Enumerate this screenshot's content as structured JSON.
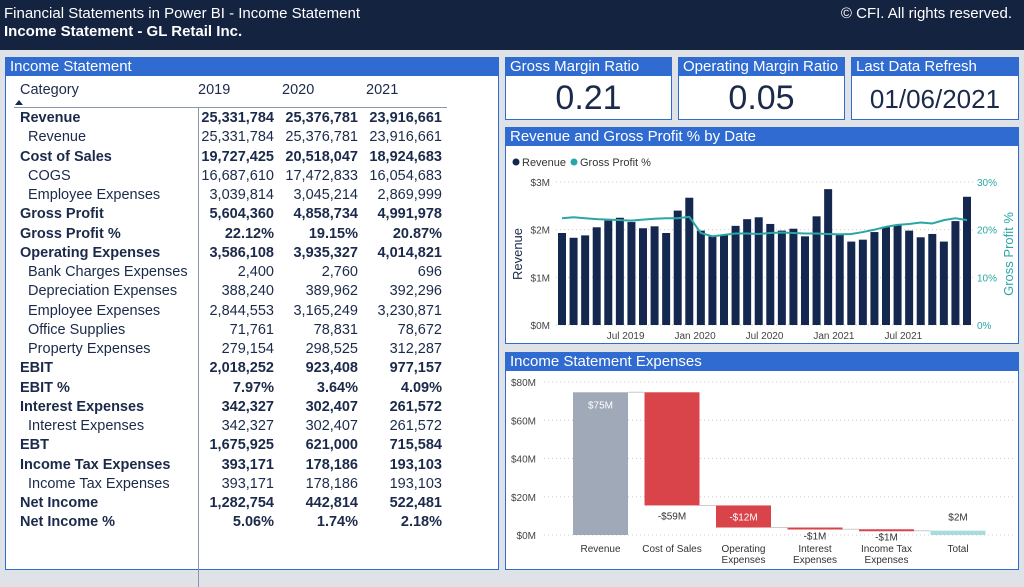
{
  "header": {
    "title": "Financial Statements in Power BI - Income Statement",
    "subtitle": "Income Statement - GL Retail Inc.",
    "copyright": "© CFI. All rights reserved."
  },
  "table": {
    "title": "Income Statement",
    "columns": [
      "Category",
      "2019",
      "2020",
      "2021"
    ],
    "sort_icon": "sort-ascending-triangle",
    "rows": [
      {
        "label": "Revenue",
        "bold": true,
        "values": [
          "25,331,784",
          "25,376,781",
          "23,916,661"
        ]
      },
      {
        "label": "Revenue",
        "bold": false,
        "values": [
          "25,331,784",
          "25,376,781",
          "23,916,661"
        ]
      },
      {
        "label": "Cost of Sales",
        "bold": true,
        "values": [
          "19,727,425",
          "20,518,047",
          "18,924,683"
        ]
      },
      {
        "label": "COGS",
        "bold": false,
        "values": [
          "16,687,610",
          "17,472,833",
          "16,054,683"
        ]
      },
      {
        "label": "Employee Expenses",
        "bold": false,
        "values": [
          "3,039,814",
          "3,045,214",
          "2,869,999"
        ]
      },
      {
        "label": "Gross Profit",
        "bold": true,
        "values": [
          "5,604,360",
          "4,858,734",
          "4,991,978"
        ]
      },
      {
        "label": "Gross Profit %",
        "bold": true,
        "values": [
          "22.12%",
          "19.15%",
          "20.87%"
        ]
      },
      {
        "label": "Operating Expenses",
        "bold": true,
        "values": [
          "3,586,108",
          "3,935,327",
          "4,014,821"
        ]
      },
      {
        "label": "Bank Charges Expenses",
        "bold": false,
        "values": [
          "2,400",
          "2,760",
          "696"
        ]
      },
      {
        "label": "Depreciation Expenses",
        "bold": false,
        "values": [
          "388,240",
          "389,962",
          "392,296"
        ]
      },
      {
        "label": "Employee Expenses",
        "bold": false,
        "values": [
          "2,844,553",
          "3,165,249",
          "3,230,871"
        ]
      },
      {
        "label": "Office Supplies",
        "bold": false,
        "values": [
          "71,761",
          "78,831",
          "78,672"
        ]
      },
      {
        "label": "Property Expenses",
        "bold": false,
        "values": [
          "279,154",
          "298,525",
          "312,287"
        ]
      },
      {
        "label": "EBIT",
        "bold": true,
        "values": [
          "2,018,252",
          "923,408",
          "977,157"
        ]
      },
      {
        "label": "EBIT %",
        "bold": true,
        "values": [
          "7.97%",
          "3.64%",
          "4.09%"
        ]
      },
      {
        "label": "Interest Expenses",
        "bold": true,
        "values": [
          "342,327",
          "302,407",
          "261,572"
        ]
      },
      {
        "label": "Interest Expenses",
        "bold": false,
        "values": [
          "342,327",
          "302,407",
          "261,572"
        ]
      },
      {
        "label": "EBT",
        "bold": true,
        "values": [
          "1,675,925",
          "621,000",
          "715,584"
        ]
      },
      {
        "label": "Income Tax Expenses",
        "bold": true,
        "values": [
          "393,171",
          "178,186",
          "193,103"
        ]
      },
      {
        "label": "Income Tax Expenses",
        "bold": false,
        "values": [
          "393,171",
          "178,186",
          "193,103"
        ]
      },
      {
        "label": "Net Income",
        "bold": true,
        "values": [
          "1,282,754",
          "442,814",
          "522,481"
        ]
      },
      {
        "label": "Net Income %",
        "bold": true,
        "values": [
          "5.06%",
          "1.74%",
          "2.18%"
        ]
      }
    ]
  },
  "kpis": [
    {
      "title": "Gross Margin Ratio",
      "value": "0.21"
    },
    {
      "title": "Operating Margin Ratio",
      "value": "0.05"
    },
    {
      "title": "Last Data Refresh",
      "value": "01/06/2021"
    }
  ],
  "colors": {
    "header": "#142340",
    "accent": "#2f6bd0",
    "revenue": "#14284f",
    "gross_profit": "#2aa6a6",
    "increase": "#a0a9b8",
    "decrease": "#d9434a",
    "total": "#a8dcdc"
  },
  "chart_data": [
    {
      "type": "bar+line",
      "title": "Revenue and Gross Profit % by Date",
      "ylabel": "Revenue",
      "y2label": "Gross Profit %",
      "legend": [
        "Revenue",
        "Gross Profit %"
      ],
      "legend_position": "top-left",
      "yticks": [
        "$0M",
        "$1M",
        "$2M",
        "$3M"
      ],
      "ylim": [
        0,
        3000000
      ],
      "y2ticks": [
        "0%",
        "10%",
        "20%",
        "30%"
      ],
      "y2lim": [
        0,
        30
      ],
      "xticks": [
        "Jul 2019",
        "Jan 2020",
        "Jul 2020",
        "Jan 2021",
        "Jul 2021"
      ],
      "x": [
        "Jan 2019",
        "Feb 2019",
        "Mar 2019",
        "Apr 2019",
        "May 2019",
        "Jun 2019",
        "Jul 2019",
        "Aug 2019",
        "Sep 2019",
        "Oct 2019",
        "Nov 2019",
        "Dec 2019",
        "Jan 2020",
        "Feb 2020",
        "Mar 2020",
        "Apr 2020",
        "May 2020",
        "Jun 2020",
        "Jul 2020",
        "Aug 2020",
        "Sep 2020",
        "Oct 2020",
        "Nov 2020",
        "Dec 2020",
        "Jan 2021",
        "Feb 2021",
        "Mar 2021",
        "Apr 2021",
        "May 2021",
        "Jun 2021",
        "Jul 2021",
        "Aug 2021",
        "Sep 2021",
        "Oct 2021",
        "Nov 2021",
        "Dec 2021"
      ],
      "series": [
        {
          "name": "Revenue",
          "values": [
            1930000,
            1830000,
            1880000,
            2050000,
            2190000,
            2250000,
            2160000,
            2030000,
            2070000,
            1930000,
            2400000,
            2670000,
            1980000,
            1860000,
            1890000,
            2080000,
            2220000,
            2260000,
            2120000,
            1980000,
            2020000,
            1860000,
            2280000,
            2850000,
            1920000,
            1750000,
            1790000,
            1950000,
            2060000,
            2100000,
            1980000,
            1840000,
            1910000,
            1750000,
            2180000,
            2690000
          ]
        },
        {
          "name": "Gross Profit %",
          "values": [
            22.4,
            22.6,
            22.4,
            22.2,
            22.1,
            22.0,
            21.9,
            22.1,
            22.3,
            22.4,
            22.4,
            22.7,
            19.3,
            18.6,
            18.9,
            19.2,
            19.2,
            19.1,
            19.3,
            19.4,
            19.3,
            19.2,
            19.2,
            19.1,
            19.0,
            19.1,
            19.5,
            20.0,
            20.6,
            21.0,
            21.2,
            21.5,
            21.3,
            22.0,
            22.4,
            22.0
          ]
        }
      ]
    },
    {
      "type": "waterfall",
      "title": "Income Statement Expenses",
      "yticks": [
        "$0M",
        "$20M",
        "$40M",
        "$60M",
        "$80M"
      ],
      "ylim": [
        0,
        80
      ],
      "categories": [
        "Revenue",
        "Cost of Sales",
        "Operating Expenses",
        "Interest Expenses",
        "Income Tax Expenses",
        "Total"
      ],
      "values": [
        74.62,
        -59.17,
        -11.54,
        -0.91,
        -0.76,
        2.25
      ],
      "labels": [
        "$75M",
        "-$59M",
        "-$12M",
        "-$1M",
        "-$1M",
        "$2M"
      ]
    }
  ]
}
